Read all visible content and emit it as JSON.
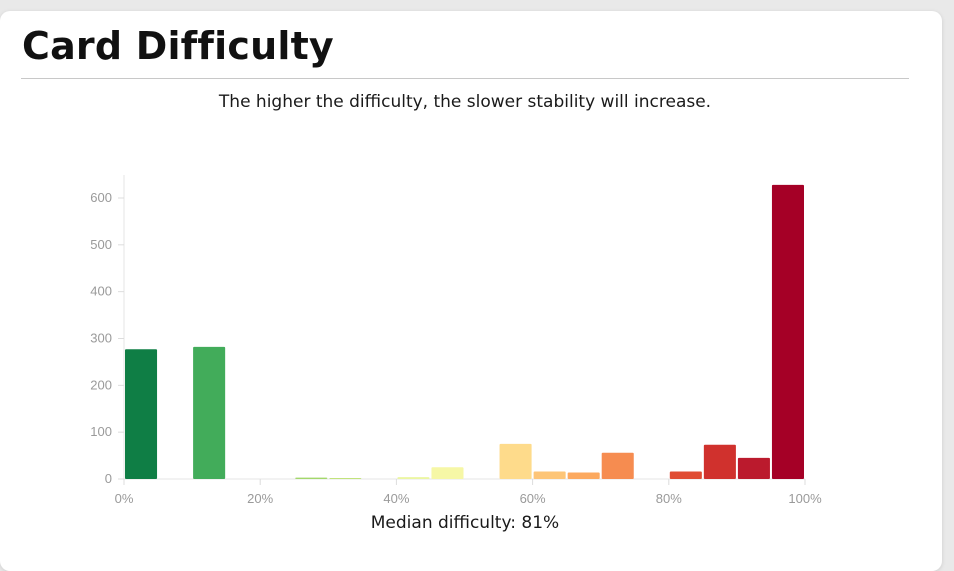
{
  "page": {
    "title": "Card Difficulty",
    "subtitle": "The higher the difficulty, the slower stability will increase.",
    "footer_label": "Median difficulty:",
    "footer_value": "81%"
  },
  "chart_data": {
    "type": "bar",
    "title": "Card Difficulty",
    "subtitle": "The higher the difficulty, the slower stability will increase.",
    "xlabel": "",
    "ylabel": "",
    "xlim": [
      0,
      100
    ],
    "ylim": [
      0,
      650
    ],
    "x_ticks": [
      0,
      20,
      40,
      60,
      80,
      100
    ],
    "x_tick_labels": [
      "0%",
      "20%",
      "40%",
      "60%",
      "80%",
      "100%"
    ],
    "y_ticks": [
      0,
      100,
      200,
      300,
      400,
      500,
      600
    ],
    "y_tick_labels": [
      "0",
      "100",
      "200",
      "300",
      "400",
      "500",
      "600"
    ],
    "grid": false,
    "legend": "none",
    "bin_width": 5,
    "bins": [
      {
        "start": 0,
        "value": 277,
        "color": "#0f7e45"
      },
      {
        "start": 5,
        "value": 0,
        "color": "#2a9a50"
      },
      {
        "start": 10,
        "value": 282,
        "color": "#42ac5a"
      },
      {
        "start": 15,
        "value": 0,
        "color": "#63bd63"
      },
      {
        "start": 20,
        "value": 0,
        "color": "#86cb67"
      },
      {
        "start": 25,
        "value": 3,
        "color": "#a3d76b"
      },
      {
        "start": 30,
        "value": 2,
        "color": "#c1e37c"
      },
      {
        "start": 35,
        "value": 0,
        "color": "#d9ef8b"
      },
      {
        "start": 40,
        "value": 4,
        "color": "#ebf6a2"
      },
      {
        "start": 45,
        "value": 25,
        "color": "#f6f7a6"
      },
      {
        "start": 50,
        "value": 0,
        "color": "#fee99a"
      },
      {
        "start": 55,
        "value": 75,
        "color": "#fedb8b"
      },
      {
        "start": 60,
        "value": 16,
        "color": "#fdc577"
      },
      {
        "start": 65,
        "value": 14,
        "color": "#fca95f"
      },
      {
        "start": 70,
        "value": 56,
        "color": "#f68c50"
      },
      {
        "start": 75,
        "value": 0,
        "color": "#ee6b41"
      },
      {
        "start": 80,
        "value": 16,
        "color": "#e04c33"
      },
      {
        "start": 85,
        "value": 73,
        "color": "#d0312d"
      },
      {
        "start": 90,
        "value": 45,
        "color": "#bb1a2d"
      },
      {
        "start": 95,
        "value": 628,
        "color": "#a50026"
      }
    ]
  }
}
